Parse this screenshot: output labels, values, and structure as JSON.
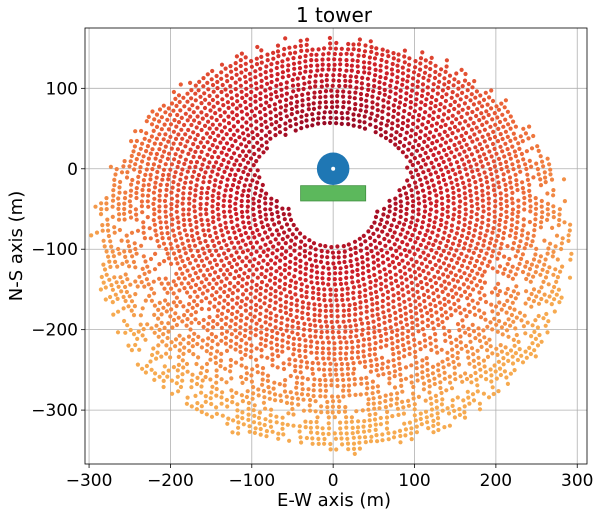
{
  "chart_data": {
    "type": "scatter",
    "title": "1 tower",
    "xlabel": "E-W axis (m)",
    "ylabel": "N-S axis (m)",
    "xlim": [
      -305,
      312
    ],
    "ylim": [
      -367,
      175
    ],
    "xticks": [
      -300,
      -200,
      -100,
      0,
      100,
      200,
      300
    ],
    "yticks": [
      100,
      0,
      -100,
      -200,
      -300
    ],
    "xtick_labels": [
      "−300",
      "−200",
      "−100",
      "0",
      "100",
      "200",
      "300"
    ],
    "ytick_labels": [
      "100",
      "0",
      "−100",
      "−200",
      "−300"
    ],
    "grid": true,
    "field": {
      "description_rows": [
        {
          "r": 42,
          "gap_deg": 120,
          "color": "#9e0a25"
        },
        {
          "r": 50,
          "gap_deg": 110,
          "color": "#a60e27"
        },
        {
          "r": 58,
          "gap_deg": 100,
          "color": "#ae1228"
        },
        {
          "r": 66,
          "gap_deg": 0,
          "color": "#b4162a"
        },
        {
          "r": 74,
          "gap_deg": 0,
          "color": "#bc1c2b"
        },
        {
          "r": 82,
          "gap_deg": 0,
          "color": "#c4222c"
        },
        {
          "r": 90,
          "gap_deg": 0,
          "color": "#cb2a2d"
        },
        {
          "r": 98,
          "gap_deg": 0,
          "color": "#d1332f"
        },
        {
          "r": 106,
          "gap_deg": 0,
          "color": "#d73e32"
        },
        {
          "r": 114,
          "gap_deg": 0,
          "color": "#dd4b35"
        },
        {
          "r": 122,
          "gap_deg": 0,
          "color": "#e25838"
        },
        {
          "r": 130,
          "gap_deg": 0,
          "color": "#e6663c"
        },
        {
          "r": 138,
          "gap_deg": 0,
          "color": "#ea7440"
        },
        {
          "r": 146,
          "gap_deg": 0,
          "color": "#ee8344"
        },
        {
          "r": 154,
          "gap_deg": 0,
          "color": "#f08f47"
        },
        {
          "r": 162,
          "gap_deg": 0,
          "color": "#f29a4a"
        },
        {
          "r": 170,
          "gap_deg": 0,
          "color": "#f4a34d"
        },
        {
          "r": 178,
          "gap_deg": 0,
          "color": "#f5a94f"
        },
        {
          "r": 186,
          "gap_deg": 0,
          "color": "#f6ad51"
        },
        {
          "r": 194,
          "gap_deg": 0,
          "color": "#f6b052"
        }
      ],
      "center_offset_y": -85,
      "spacing": 7.2
    },
    "tower": {
      "x": 0,
      "y": 0,
      "radius": 20,
      "color": "#1f77b4"
    },
    "receiver": {
      "x0": -40,
      "x1": 40,
      "y0": -40,
      "y1": -21,
      "color": "#5cb85c"
    }
  }
}
